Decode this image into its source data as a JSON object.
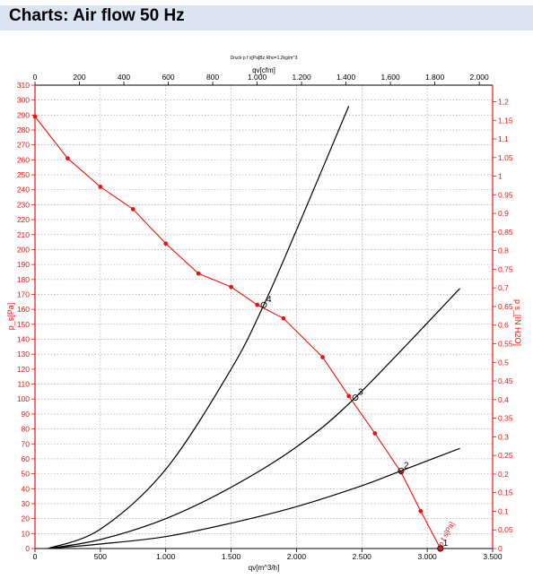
{
  "header": {
    "title": "Charts: Air flow 50 Hz"
  },
  "colors": {
    "red": "#e8150f",
    "black": "#000000",
    "grid": "#9a9a9a",
    "header_bg": "#dbe5f1"
  },
  "chart_data": {
    "type": "line",
    "title": "Druck p f s[Pa]Bz Rho=1,2kg/m^3",
    "xlabel": "qv[m^3/h]",
    "x2label": "qv[cfm]",
    "ylabel": "p_s[Pa]",
    "y2label": "p s_[IN H2O]",
    "xlim": [
      0,
      3500
    ],
    "ylim": [
      0,
      310
    ],
    "x_ticks": [
      0,
      500,
      1000,
      1500,
      2000,
      2500,
      3000,
      3500
    ],
    "x_tick_labels": [
      "0",
      "500",
      "1.000",
      "1.500",
      "2.000",
      "2.500",
      "3.000",
      "3.500"
    ],
    "x2_ticks": [
      0,
      200,
      400,
      600,
      800,
      1000,
      1200,
      1400,
      1600,
      1800,
      2000
    ],
    "x2_tick_labels": [
      "0",
      "200",
      "400",
      "600",
      "800",
      "1.000",
      "1.200",
      "1.400",
      "1.600",
      "1.800",
      "2.000"
    ],
    "y_ticks": [
      0,
      10,
      20,
      30,
      40,
      50,
      60,
      70,
      80,
      90,
      100,
      110,
      120,
      130,
      140,
      150,
      160,
      170,
      180,
      190,
      200,
      210,
      220,
      230,
      240,
      250,
      260,
      270,
      280,
      290,
      300,
      310
    ],
    "y_tick_labels": [
      "0",
      "10",
      "20",
      "30",
      "40",
      "50",
      "60",
      "70",
      "80",
      "90",
      "100",
      "110",
      "120",
      "130",
      "140",
      "150",
      "160",
      "170",
      "180",
      "190",
      "200",
      "210",
      "220",
      "230",
      "240",
      "250",
      "260",
      "270",
      "280",
      "290",
      "300",
      "310"
    ],
    "y2_ticks": [
      0,
      0.05,
      0.1,
      0.15,
      0.2,
      0.25,
      0.3,
      0.35,
      0.4,
      0.45,
      0.5,
      0.55,
      0.6,
      0.65,
      0.7,
      0.75,
      0.8,
      0.85,
      0.9,
      0.95,
      1,
      1.05,
      1.1,
      1.15,
      1.2
    ],
    "y2_tick_labels": [
      "0",
      "0,05",
      "0,1",
      "0,15",
      "0,2",
      "0,25",
      "0,3",
      "0,35",
      "0,4",
      "0,45",
      "0,5",
      "0,55",
      "0,6",
      "0,65",
      "0,7",
      "0,75",
      "0,8",
      "0,85",
      "0,9",
      "0,95",
      "1",
      "1,05",
      "1,1",
      "1,15",
      "1,2"
    ],
    "grid": true,
    "series": [
      {
        "name": "p f s[Pa]",
        "color": "#e8150f",
        "markers": true,
        "x": [
          0,
          250,
          500,
          750,
          1000,
          1250,
          1500,
          1700,
          1900,
          2200,
          2400,
          2600,
          2800,
          2950,
          3100
        ],
        "y": [
          289,
          261,
          242,
          227,
          204,
          184,
          175,
          163,
          154,
          128,
          102,
          77,
          51,
          25,
          0
        ]
      },
      {
        "name": "",
        "color": "#000000",
        "markers": false,
        "x": [
          100,
          500,
          1000,
          1500,
          1750,
          2000,
          2400
        ],
        "y": [
          0,
          13,
          53,
          120,
          163,
          213,
          296
        ]
      },
      {
        "name": "",
        "color": "#000000",
        "markers": false,
        "x": [
          100,
          500,
          1000,
          1500,
          2000,
          2450,
          3250
        ],
        "y": [
          0,
          6,
          20,
          41,
          68,
          101,
          174
        ]
      },
      {
        "name": "",
        "color": "#000000",
        "markers": false,
        "x": [
          100,
          500,
          1000,
          1500,
          2000,
          2500,
          2800,
          3250
        ],
        "y": [
          0,
          3,
          8,
          17,
          28,
          42,
          52,
          67
        ]
      }
    ],
    "annotations": [
      {
        "text": "4",
        "x": 1750,
        "y": 163
      },
      {
        "text": "3",
        "x": 2450,
        "y": 101
      },
      {
        "text": "2",
        "x": 2800,
        "y": 52
      },
      {
        "text": "1",
        "x": 3100,
        "y": 0
      }
    ],
    "red_curve_label": "p f s[Pa]"
  }
}
